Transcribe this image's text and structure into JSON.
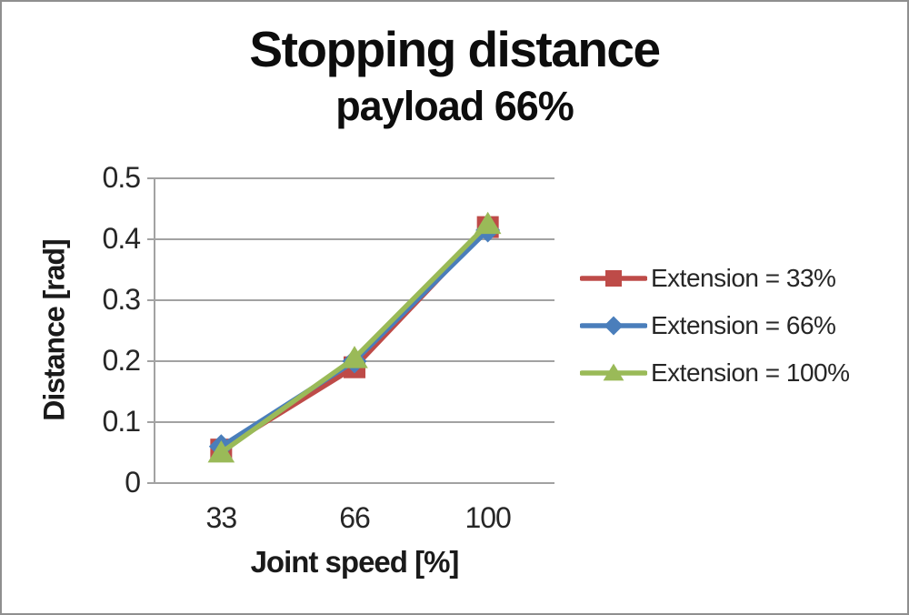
{
  "chart_data": {
    "type": "line",
    "title": "Stopping distance",
    "subtitle": "payload 66%",
    "xlabel": "Joint speed [%]",
    "ylabel": "Distance [rad]",
    "categories": [
      "33",
      "66",
      "100"
    ],
    "series": [
      {
        "name": "Extension = 33%",
        "marker": "square",
        "color": "#BE4B48",
        "values": [
          0.055,
          0.19,
          0.42
        ]
      },
      {
        "name": "Extension = 66%",
        "marker": "diamond",
        "color": "#4A7EBB",
        "values": [
          0.06,
          0.2,
          0.415
        ]
      },
      {
        "name": "Extension = 100%",
        "marker": "triangle",
        "color": "#9ABA58",
        "values": [
          0.05,
          0.205,
          0.425
        ]
      }
    ],
    "ylim": [
      0,
      0.5
    ],
    "yticks": [
      "0",
      "0.1",
      "0.2",
      "0.3",
      "0.4",
      "0.5"
    ],
    "grid": true,
    "legend_position": "right",
    "axis_color": "#A2A2A2",
    "text_color": "#262626",
    "frame_border_color": "#8f8f8f"
  }
}
